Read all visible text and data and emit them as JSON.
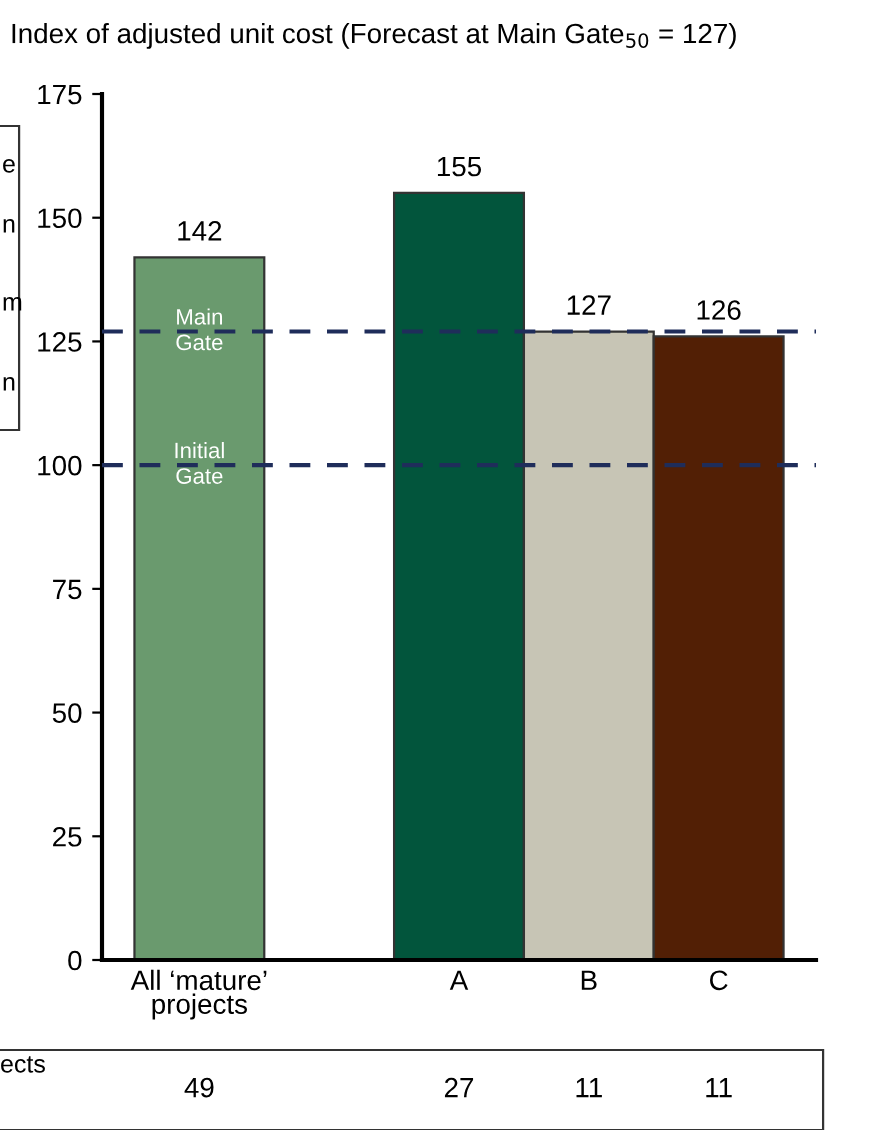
{
  "chart_data": {
    "type": "bar",
    "title": "Index of adjusted unit cost (Forecast at Main Gate$_{50}$ = 127)",
    "categories": [
      "All ‘mature’ projects",
      null,
      "A",
      "B",
      "C"
    ],
    "values": [
      142,
      null,
      155,
      127,
      126
    ],
    "colors": [
      "#6a9a6e",
      "#ffffff",
      "#02553c",
      "#c7c5b5",
      "#521f05"
    ],
    "data_labels": true,
    "ylim": [
      0,
      175
    ],
    "yticks": [
      0,
      25,
      50,
      75,
      100,
      125,
      150,
      175
    ],
    "grid": false,
    "legend": false,
    "ref_lines": [
      {
        "axis": "y",
        "value": 127,
        "label": "Main\nGate",
        "color": "#1f2d5a",
        "line_style": "dashed"
      },
      {
        "axis": "y",
        "value": 100,
        "label": "Initial\nGate",
        "color": "#1f2d5a",
        "line_style": "dashed"
      }
    ],
    "annotations": [
      "49",
      "27",
      "11",
      "11",
      "ects",
      "e",
      "n",
      "m",
      "n"
    ]
  }
}
